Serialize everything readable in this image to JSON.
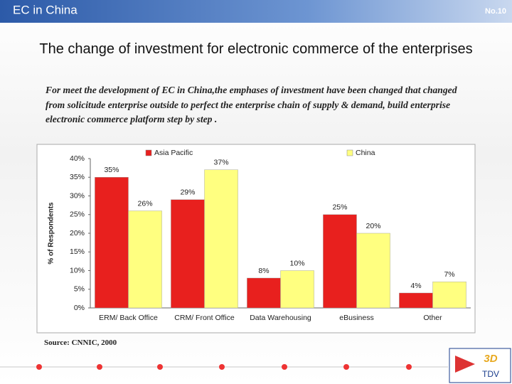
{
  "header": "EC in China",
  "page_number": "No.10",
  "title": "The change of investment for electronic commerce of the enterprises",
  "body": "For meet the development of EC in China,the emphases of investment have been changed that changed  from solicitude enterprise outside to perfect the enterprise chain of supply & demand, build enterprise electronic commerce platform step by step .",
  "source": "Source: CNNIC, 2000",
  "logo": {
    "mark": "3D",
    "text": "TDV"
  },
  "chart_data": {
    "type": "bar",
    "categories": [
      "ERM/ Back Office",
      "CRM/ Front Office",
      "Data Warehousing",
      "eBusiness",
      "Other"
    ],
    "series": [
      {
        "name": "Asia Pacific",
        "color": "#e8201e",
        "values": [
          35,
          29,
          8,
          25,
          4
        ],
        "value_labels": [
          "35%",
          "29%",
          "8%",
          "25%",
          "4%"
        ]
      },
      {
        "name": "China",
        "color": "#ffff80",
        "values": [
          26,
          37,
          10,
          20,
          7
        ],
        "value_labels": [
          "26%",
          "37%",
          "10%",
          "20%",
          "7%"
        ]
      }
    ],
    "y_label": "% of Respondents",
    "ylim": [
      0,
      40
    ],
    "yticks": [
      {
        "value": 0,
        "label": "0%"
      },
      {
        "value": 5,
        "label": "5%"
      },
      {
        "value": 10,
        "label": "10%"
      },
      {
        "value": 15,
        "label": "15%"
      },
      {
        "value": 20,
        "label": "20%"
      },
      {
        "value": 25,
        "label": "25%"
      },
      {
        "value": 30,
        "label": "30%"
      },
      {
        "value": 35,
        "label": "35%"
      },
      {
        "value": 40,
        "label": "40%"
      }
    ],
    "grid": false,
    "legend": "top"
  }
}
